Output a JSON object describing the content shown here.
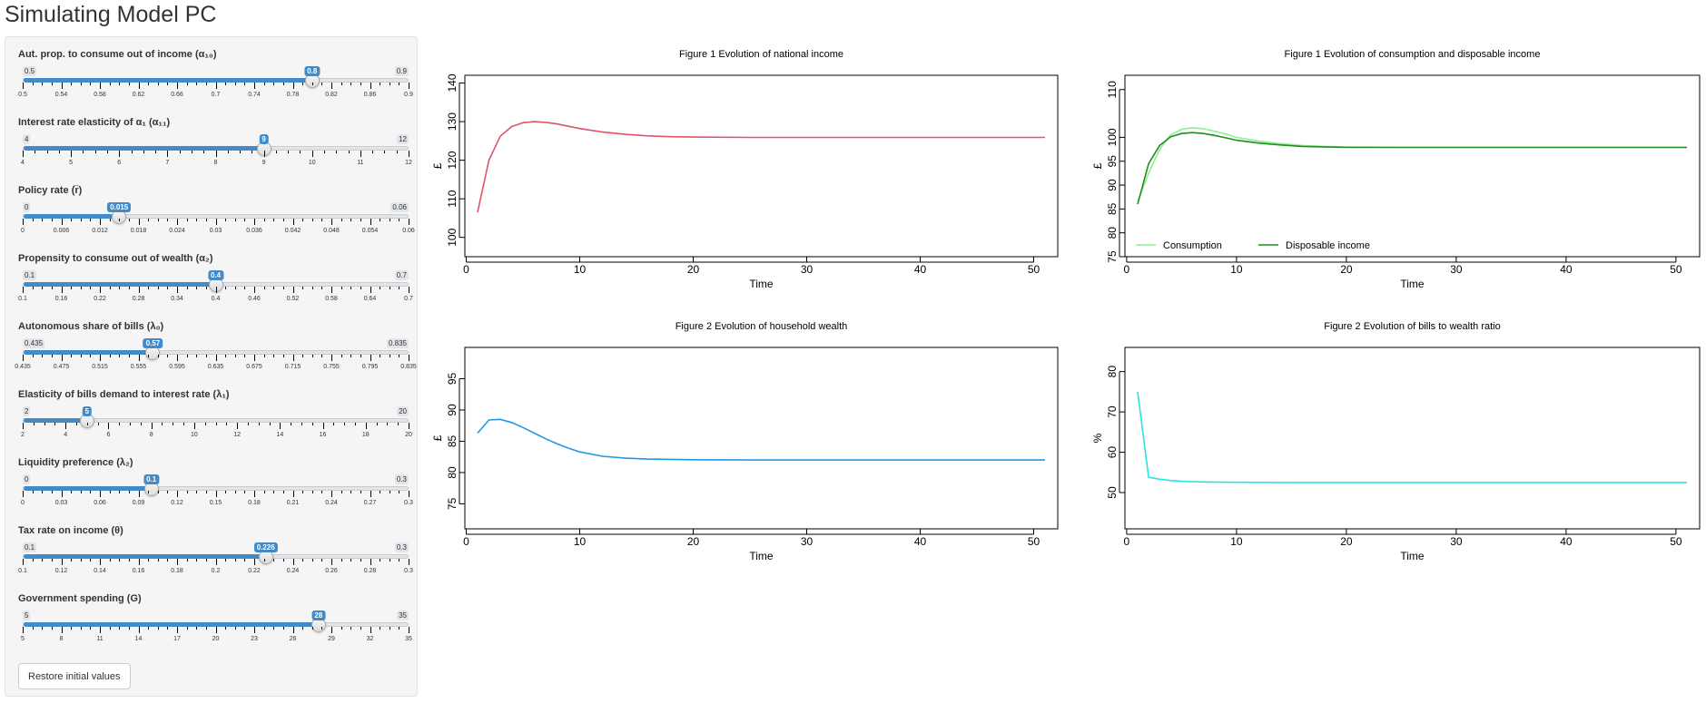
{
  "page": {
    "title": "Simulating Model PC"
  },
  "sliders": [
    {
      "label": "Aut. prop. to consume out of income (α₁₀)",
      "min": 0.5,
      "max": 0.9,
      "value": 0.8,
      "min_label": "0.5",
      "max_label": "0.9",
      "value_label": "0.8",
      "ticks": [
        "0.5",
        "0.54",
        "0.58",
        "0.62",
        "0.66",
        "0.7",
        "0.74",
        "0.78",
        "0.82",
        "0.86",
        "0.9"
      ]
    },
    {
      "label": "Interest rate elasticity of α₁ (α₁₁)",
      "min": 4,
      "max": 12,
      "value": 9,
      "min_label": "4",
      "max_label": "12",
      "value_label": "9",
      "ticks": [
        "4",
        "5",
        "6",
        "7",
        "8",
        "9",
        "10",
        "11",
        "12"
      ]
    },
    {
      "label": "Policy rate (r̅)",
      "min": 0,
      "max": 0.06,
      "value": 0.015,
      "min_label": "0",
      "max_label": "0.06",
      "value_label": "0.015",
      "ticks": [
        "0",
        "0.006",
        "0.012",
        "0.018",
        "0.024",
        "0.03",
        "0.036",
        "0.042",
        "0.048",
        "0.054",
        "0.06"
      ]
    },
    {
      "label": "Propensity to consume out of wealth (α₂)",
      "min": 0.1,
      "max": 0.7,
      "value": 0.4,
      "min_label": "0.1",
      "max_label": "0.7",
      "value_label": "0.4",
      "ticks": [
        "0.1",
        "0.16",
        "0.22",
        "0.28",
        "0.34",
        "0.4",
        "0.46",
        "0.52",
        "0.58",
        "0.64",
        "0.7"
      ]
    },
    {
      "label": "Autonomous share of bills (λ₀)",
      "min": 0.435,
      "max": 0.835,
      "value": 0.57,
      "min_label": "0.435",
      "max_label": "0.835",
      "value_label": "0.57",
      "ticks": [
        "0.435",
        "0.475",
        "0.515",
        "0.555",
        "0.595",
        "0.635",
        "0.675",
        "0.715",
        "0.755",
        "0.795",
        "0.835"
      ]
    },
    {
      "label": "Elasticity of bills demand to interest rate (λ₁)",
      "min": 2,
      "max": 20,
      "value": 5,
      "min_label": "2",
      "max_label": "20",
      "value_label": "5",
      "ticks": [
        "2",
        "4",
        "6",
        "8",
        "10",
        "12",
        "14",
        "16",
        "18",
        "20"
      ]
    },
    {
      "label": "Liquidity preference (λ₂)",
      "min": 0,
      "max": 0.3,
      "value": 0.1,
      "min_label": "0",
      "max_label": "0.3",
      "value_label": "0.1",
      "ticks": [
        "0",
        "0.03",
        "0.06",
        "0.09",
        "0.12",
        "0.15",
        "0.18",
        "0.21",
        "0.24",
        "0.27",
        "0.3"
      ]
    },
    {
      "label": "Tax rate on income (θ)",
      "min": 0.1,
      "max": 0.3,
      "value": 0.226,
      "min_label": "0.1",
      "max_label": "0.3",
      "value_label": "0.226",
      "ticks": [
        "0.1",
        "0.12",
        "0.14",
        "0.16",
        "0.18",
        "0.2",
        "0.22",
        "0.24",
        "0.26",
        "0.28",
        "0.3"
      ]
    },
    {
      "label": "Government spending (G)",
      "min": 5,
      "max": 35,
      "value": 28,
      "min_label": "5",
      "max_label": "35",
      "value_label": "28",
      "ticks": [
        "5",
        "8",
        "11",
        "14",
        "17",
        "20",
        "23",
        "26",
        "29",
        "32",
        "35"
      ]
    }
  ],
  "restore_button": {
    "label": "Restore initial values"
  },
  "chart_data": [
    {
      "type": "line",
      "title": "Figure 1  Evolution of national income",
      "xlabel": "Time",
      "ylabel": "£",
      "xlim": [
        1,
        51
      ],
      "ylim": [
        95,
        142
      ],
      "xticks": [
        0,
        10,
        20,
        30,
        40,
        50
      ],
      "yticks": [
        100,
        110,
        120,
        130,
        140
      ],
      "series": [
        {
          "color": "#df536b",
          "x": [
            1,
            2,
            3,
            4,
            5,
            6,
            7,
            8,
            9,
            10,
            12,
            14,
            16,
            18,
            20,
            25,
            30,
            40,
            51
          ],
          "y": [
            106.5,
            120.0,
            126.2,
            128.7,
            129.7,
            130.0,
            129.8,
            129.4,
            128.8,
            128.2,
            127.3,
            126.7,
            126.3,
            126.1,
            126.0,
            125.9,
            125.9,
            125.9,
            125.9
          ]
        }
      ]
    },
    {
      "type": "line",
      "title": "Figure 1  Evolution of consumption and disposable income",
      "xlabel": "Time",
      "ylabel": "£",
      "xlim": [
        1,
        51
      ],
      "ylim": [
        75,
        113
      ],
      "xticks": [
        0,
        10,
        20,
        30,
        40,
        50
      ],
      "yticks": [
        75,
        80,
        85,
        90,
        95,
        100,
        110
      ],
      "legend": "bottom-left",
      "series": [
        {
          "name": "Consumption",
          "color": "#90ee90",
          "x": [
            1,
            2,
            3,
            4,
            5,
            6,
            7,
            8,
            9,
            10,
            12,
            14,
            16,
            18,
            20,
            25,
            30,
            40,
            51
          ],
          "y": [
            86.5,
            92.5,
            97.5,
            100.5,
            101.7,
            102.0,
            101.8,
            101.3,
            100.7,
            100.0,
            99.2,
            98.7,
            98.3,
            98.1,
            98.0,
            97.9,
            97.9,
            97.9,
            97.9
          ]
        },
        {
          "name": "Disposable income",
          "color": "#228b22",
          "x": [
            1,
            2,
            3,
            4,
            5,
            6,
            7,
            8,
            9,
            10,
            12,
            14,
            16,
            18,
            20,
            25,
            30,
            40,
            51
          ],
          "y": [
            86.0,
            94.5,
            98.3,
            100.1,
            100.8,
            101.0,
            100.8,
            100.4,
            99.9,
            99.4,
            98.8,
            98.4,
            98.1,
            98.0,
            97.9,
            97.9,
            97.9,
            97.9,
            97.9
          ]
        }
      ]
    },
    {
      "type": "line",
      "title": "Figure 2  Evolution of household wealth",
      "xlabel": "Time",
      "ylabel": "£",
      "xlim": [
        1,
        51
      ],
      "ylim": [
        71,
        100
      ],
      "xticks": [
        0,
        10,
        20,
        30,
        40,
        50
      ],
      "yticks": [
        75,
        80,
        85,
        90,
        95
      ],
      "series": [
        {
          "color": "#2297e6",
          "x": [
            1,
            2,
            3,
            4,
            5,
            6,
            7,
            8,
            9,
            10,
            12,
            14,
            16,
            18,
            20,
            25,
            30,
            40,
            51
          ],
          "y": [
            86.3,
            88.4,
            88.5,
            88.0,
            87.2,
            86.3,
            85.4,
            84.6,
            83.9,
            83.3,
            82.6,
            82.3,
            82.15,
            82.1,
            82.05,
            82.0,
            82.0,
            82.0,
            82.0
          ]
        }
      ]
    },
    {
      "type": "line",
      "title": "Figure 2  Evolution of bills to wealth ratio",
      "xlabel": "Time",
      "ylabel": "%",
      "xlim": [
        1,
        51
      ],
      "ylim": [
        41,
        86
      ],
      "xticks": [
        0,
        10,
        20,
        30,
        40,
        50
      ],
      "yticks": [
        50,
        60,
        70,
        80
      ],
      "series": [
        {
          "color": "#28e2e5",
          "x": [
            1,
            2,
            3,
            4,
            5,
            6,
            8,
            10,
            15,
            20,
            30,
            40,
            51
          ],
          "y": [
            75.0,
            53.8,
            53.3,
            53.0,
            52.8,
            52.7,
            52.6,
            52.55,
            52.5,
            52.5,
            52.5,
            52.5,
            52.5
          ]
        }
      ]
    }
  ]
}
